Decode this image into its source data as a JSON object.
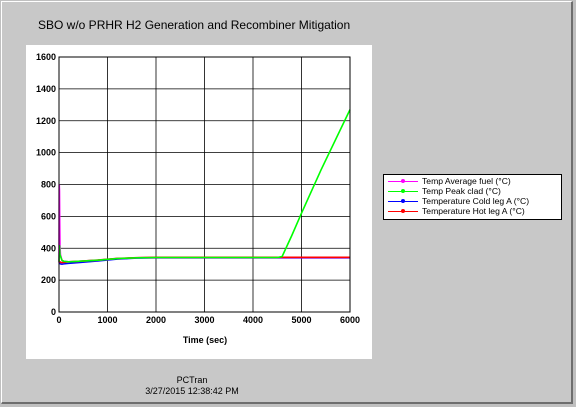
{
  "title": "SBO w/o PRHR H2 Generation and Recombiner Mitigation",
  "footer": {
    "app": "PCTran",
    "datetime": "3/27/2015 12:38:42 PM"
  },
  "chart_data": {
    "type": "line",
    "title": "SBO w/o PRHR H2 Generation and Recombiner Mitigation",
    "xlabel": "Time (sec)",
    "ylabel": "",
    "xlim": [
      0,
      6000
    ],
    "ylim": [
      0,
      1600
    ],
    "xticks": [
      0,
      1000,
      2000,
      3000,
      4000,
      5000,
      6000
    ],
    "yticks": [
      0,
      200,
      400,
      600,
      800,
      1000,
      1200,
      1400,
      1600
    ],
    "grid": true,
    "legend_position": "right",
    "series": [
      {
        "name": "Temp Average fuel (°C)",
        "color": "#ff00ff",
        "x": [
          0,
          5,
          10,
          15,
          20,
          30,
          60,
          100,
          200,
          400,
          800,
          1200,
          1600,
          2000,
          3000,
          4000,
          4600,
          5000,
          6000
        ],
        "y": [
          310,
          800,
          760,
          560,
          420,
          360,
          325,
          318,
          315,
          318,
          325,
          335,
          340,
          342,
          342,
          342,
          342,
          342,
          342
        ]
      },
      {
        "name": "Temp Peak clad (°C)",
        "color": "#00ff00",
        "x": [
          0,
          10,
          20,
          60,
          100,
          200,
          400,
          800,
          1200,
          1600,
          2000,
          3000,
          4000,
          4500,
          4600,
          4800,
          5000,
          5400,
          6000
        ],
        "y": [
          315,
          420,
          360,
          325,
          318,
          315,
          318,
          325,
          335,
          340,
          342,
          342,
          342,
          342,
          348,
          480,
          620,
          890,
          1270
        ]
      },
      {
        "name": "Temperature Cold leg A (°C)",
        "color": "#0000ff",
        "x": [
          0,
          30,
          60,
          100,
          200,
          400,
          800,
          1200,
          1600,
          2000,
          3000,
          4000,
          5000,
          6000
        ],
        "y": [
          308,
          302,
          300,
          302,
          305,
          310,
          320,
          332,
          338,
          340,
          340,
          340,
          340,
          340
        ]
      },
      {
        "name": "Temperature Hot leg A (°C)",
        "color": "#ff0000",
        "x": [
          0,
          30,
          60,
          100,
          200,
          400,
          800,
          1200,
          1600,
          2000,
          3000,
          4000,
          5000,
          6000
        ],
        "y": [
          320,
          312,
          310,
          312,
          315,
          318,
          326,
          336,
          341,
          343,
          343,
          343,
          343,
          343
        ]
      }
    ]
  }
}
